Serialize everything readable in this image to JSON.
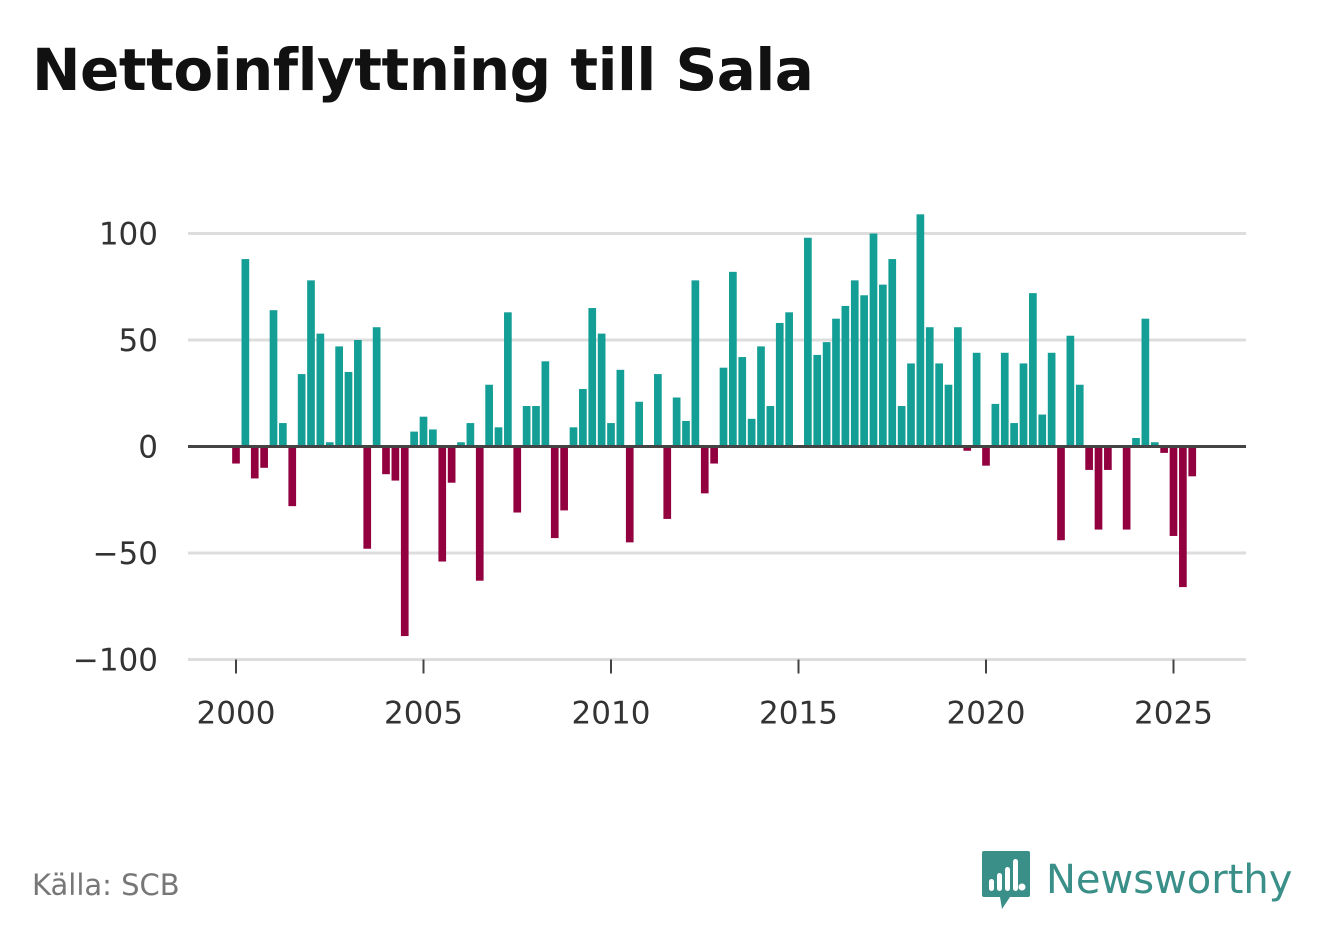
{
  "source": "Källa: SCB",
  "brand": {
    "name": "Newsworthy",
    "icon": "newsworthy-bar-chart-icon"
  },
  "colors": {
    "positive": "#139e96",
    "negative": "#920040",
    "grid": "#dddddd",
    "zero": "#444444",
    "brand": "#3a8f89"
  },
  "chart_data": {
    "type": "bar",
    "title": "Nettoinflyttning till Sala",
    "xlabel": "",
    "ylabel": "",
    "ylim": [
      -100,
      100
    ],
    "yticks": [
      100,
      50,
      0,
      -50,
      -100
    ],
    "ytick_labels": [
      "100",
      "50",
      "0",
      "−50",
      "−100"
    ],
    "xticks": [
      2000,
      2005,
      2010,
      2015,
      2020,
      2025
    ],
    "xtick_labels": [
      "2000",
      "2005",
      "2010",
      "2015",
      "2020",
      "2025"
    ],
    "start": 2000,
    "step": 0.25,
    "categories": [
      "2000 Q1",
      "2000 Q2",
      "2000 Q3",
      "2000 Q4",
      "2001 Q1",
      "2001 Q2",
      "2001 Q3",
      "2001 Q4",
      "2002 Q1",
      "2002 Q2",
      "2002 Q3",
      "2002 Q4",
      "2003 Q1",
      "2003 Q2",
      "2003 Q3",
      "2003 Q4",
      "2004 Q1",
      "2004 Q2",
      "2004 Q3",
      "2004 Q4",
      "2005 Q1",
      "2005 Q2",
      "2005 Q3",
      "2005 Q4",
      "2006 Q1",
      "2006 Q2",
      "2006 Q3",
      "2006 Q4",
      "2007 Q1",
      "2007 Q2",
      "2007 Q3",
      "2007 Q4",
      "2008 Q1",
      "2008 Q2",
      "2008 Q3",
      "2008 Q4",
      "2009 Q1",
      "2009 Q2",
      "2009 Q3",
      "2009 Q4",
      "2010 Q1",
      "2010 Q2",
      "2010 Q3",
      "2010 Q4",
      "2011 Q1",
      "2011 Q2",
      "2011 Q3",
      "2011 Q4",
      "2012 Q1",
      "2012 Q2",
      "2012 Q3",
      "2012 Q4",
      "2013 Q1",
      "2013 Q2",
      "2013 Q3",
      "2013 Q4",
      "2014 Q1",
      "2014 Q2",
      "2014 Q3",
      "2014 Q4",
      "2015 Q1",
      "2015 Q2",
      "2015 Q3",
      "2015 Q4",
      "2016 Q1",
      "2016 Q2",
      "2016 Q3",
      "2016 Q4",
      "2017 Q1",
      "2017 Q2",
      "2017 Q3",
      "2017 Q4",
      "2018 Q1",
      "2018 Q2",
      "2018 Q3",
      "2018 Q4",
      "2019 Q1",
      "2019 Q2",
      "2019 Q3",
      "2019 Q4",
      "2020 Q1",
      "2020 Q2",
      "2020 Q3",
      "2020 Q4",
      "2021 Q1",
      "2021 Q2",
      "2021 Q3",
      "2021 Q4",
      "2022 Q1",
      "2022 Q2",
      "2022 Q3",
      "2022 Q4",
      "2023 Q1",
      "2023 Q2",
      "2023 Q3",
      "2023 Q4",
      "2024 Q1",
      "2024 Q2",
      "2024 Q3",
      "2024 Q4",
      "2025 Q1",
      "2025 Q2",
      "2025 Q3",
      "2025 Q4"
    ],
    "values": [
      -8,
      88,
      -15,
      -10,
      64,
      11,
      -28,
      34,
      78,
      53,
      2,
      47,
      35,
      50,
      -48,
      56,
      -13,
      -16,
      -89,
      7,
      14,
      8,
      -54,
      -17,
      2,
      11,
      -63,
      29,
      9,
      63,
      -31,
      19,
      19,
      40,
      -43,
      -30,
      9,
      27,
      65,
      53,
      11,
      36,
      -45,
      21,
      0,
      34,
      -34,
      23,
      12,
      78,
      -22,
      -8,
      37,
      82,
      42,
      13,
      47,
      19,
      58,
      63,
      0,
      98,
      43,
      49,
      60,
      66,
      78,
      71,
      100,
      76,
      88,
      19,
      39,
      109,
      56,
      39,
      29,
      56,
      -2,
      44,
      -9,
      20,
      44,
      11,
      39,
      72,
      15,
      44,
      -44,
      52,
      29,
      -11,
      -39,
      -11,
      0,
      -39,
      4,
      60,
      2,
      -3,
      -42,
      -66,
      -14,
      0
    ]
  }
}
